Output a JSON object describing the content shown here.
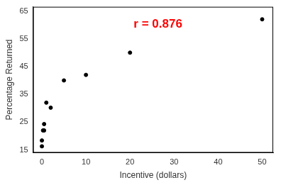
{
  "chart_data": {
    "type": "scatter",
    "x_label": "Incentive (dollars)",
    "y_label": "Percentage Returned",
    "annotation": "r = 0.876",
    "x": [
      0,
      0,
      0.25,
      0.5,
      0.5,
      1,
      2,
      5,
      10,
      20,
      50
    ],
    "values": [
      16.3,
      18.4,
      22,
      22,
      24.3,
      32,
      30.2,
      40,
      42,
      50,
      62
    ],
    "color": "#000000",
    "marker": "circle",
    "xlim": [
      -2,
      52.5
    ],
    "xticks": [
      0,
      10,
      20,
      30,
      40,
      50
    ],
    "ylim": [
      14,
      66.5
    ],
    "yticks": [
      15,
      25,
      35,
      45,
      55,
      65
    ],
    "grid": false
  }
}
